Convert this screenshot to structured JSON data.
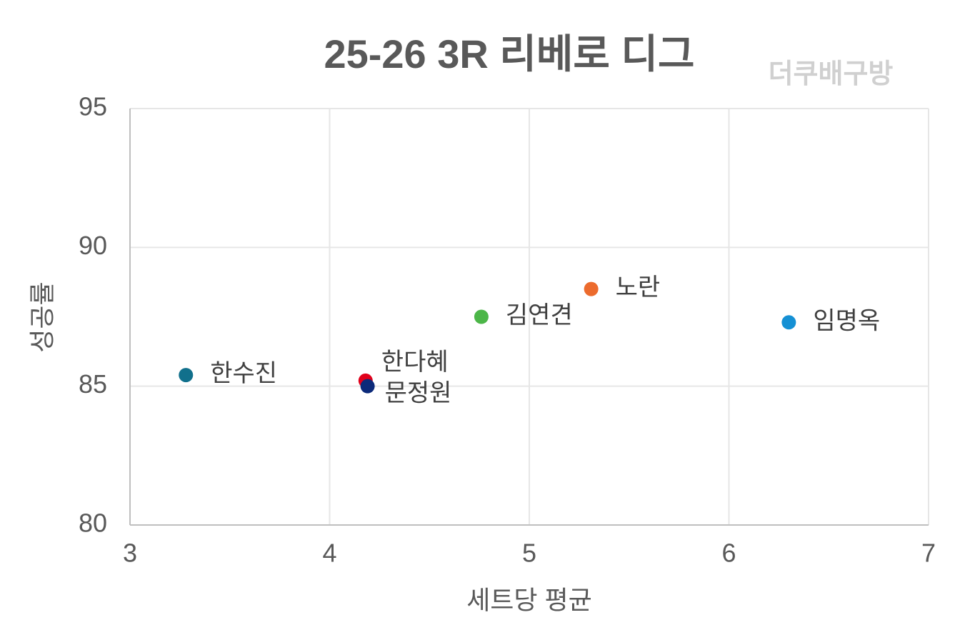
{
  "chart_data": {
    "type": "scatter",
    "title": "25-26  3R 리베로 디그",
    "watermark": "더쿠배구방",
    "x_label": "세트당 평균",
    "y_label": "성공률",
    "xlim": [
      3,
      7
    ],
    "xticks": [
      3,
      4,
      5,
      6,
      7
    ],
    "ylim": [
      80,
      95
    ],
    "yticks": [
      80,
      85,
      90,
      95
    ],
    "grid": true,
    "series": [
      {
        "name": "한수진",
        "color": "#11708c",
        "x": [
          3.28
        ],
        "values": [
          85.4
        ]
      },
      {
        "name": "한다혜",
        "color": "#e0001b",
        "x": [
          4.18
        ],
        "values": [
          85.2
        ]
      },
      {
        "name": "문정원",
        "color": "#0c2a7a",
        "x": [
          4.19
        ],
        "values": [
          85.0
        ]
      },
      {
        "name": "김연견",
        "color": "#4cb648",
        "x": [
          4.76
        ],
        "values": [
          87.5
        ]
      },
      {
        "name": "노란",
        "color": "#ec6b2d",
        "x": [
          5.31
        ],
        "values": [
          88.5
        ]
      },
      {
        "name": "임명옥",
        "color": "#1590d4",
        "x": [
          6.3
        ],
        "values": [
          87.3
        ]
      }
    ]
  }
}
